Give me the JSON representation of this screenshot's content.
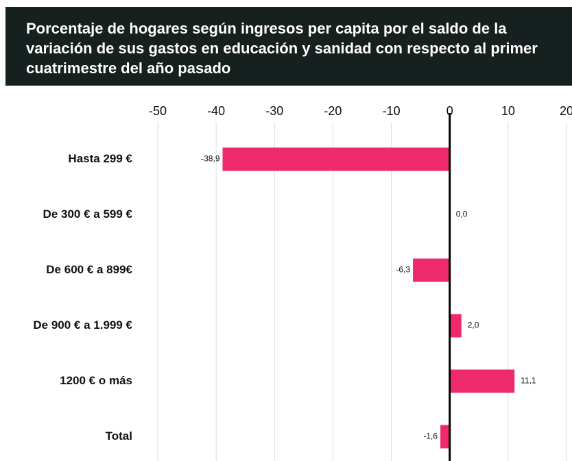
{
  "chart_data": {
    "type": "bar",
    "orientation": "horizontal",
    "title": "Porcentaje de hogares según ingresos per capita por el saldo de la variación de sus gastos en educación y sanidad con respecto al primer cuatrimestre del año pasado",
    "categories": [
      "Hasta 299 €",
      "De 300 € a 599 €",
      "De 600 € a 899€",
      "De 900 € a 1.999 €",
      "1200 € o más",
      "Total"
    ],
    "values": [
      -38.9,
      0.0,
      -6.3,
      2.0,
      11.1,
      -1.6
    ],
    "value_labels": [
      "-38,9",
      "0,0",
      "-6,3",
      "2,0",
      "11,1",
      "-1,6"
    ],
    "color": "#ee2a6a",
    "xlim": [
      -50,
      20
    ],
    "xticks": [
      -50,
      -40,
      -30,
      -20,
      -10,
      0,
      10,
      20
    ],
    "grid": true
  }
}
